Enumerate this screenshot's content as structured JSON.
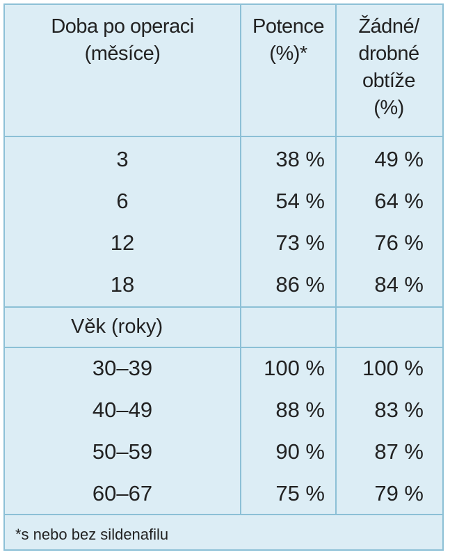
{
  "table": {
    "header": [
      [
        "Doba po operaci",
        "(měsíce)"
      ],
      [
        "Potence",
        "(%)*"
      ],
      [
        "Žádné/",
        "drobné",
        "obtíže",
        "(%)"
      ]
    ],
    "rows": [
      [
        "3",
        "38 %",
        "49 %"
      ],
      [
        "6",
        "54 %",
        "64 %"
      ],
      [
        "12",
        "73 %",
        "76 %"
      ],
      [
        "18",
        "86 %",
        "84 %"
      ]
    ],
    "section": "Věk (roky)",
    "rows2": [
      [
        "30–39",
        "100 %",
        "100 %"
      ],
      [
        "40–49",
        "88 %",
        "83 %"
      ],
      [
        "50–59",
        "90 %",
        "87 %"
      ],
      [
        "60–67",
        "75 %",
        "79 %"
      ]
    ],
    "footnote": "*s nebo bez sildenafilu"
  }
}
